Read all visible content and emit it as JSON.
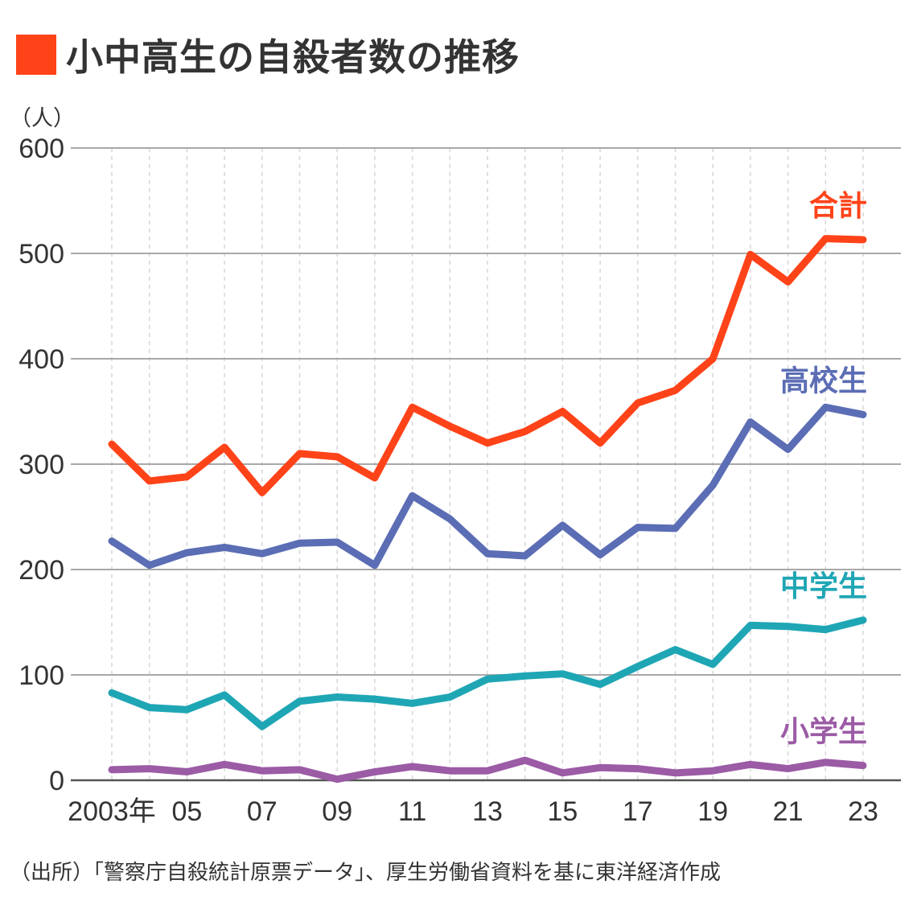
{
  "title": "小中高生の自殺者数の推移",
  "title_color": "#FF4319",
  "source": "（出所）「警察庁自殺統計原票データ」、厚生労働省資料を基に東洋経済作成",
  "chart_data": {
    "type": "line",
    "ylabel": "（人）",
    "ylim": [
      0,
      600
    ],
    "yticks": [
      0,
      100,
      200,
      300,
      400,
      500,
      600
    ],
    "grid": true,
    "x": [
      2003,
      2004,
      2005,
      2006,
      2007,
      2008,
      2009,
      2010,
      2011,
      2012,
      2013,
      2014,
      2015,
      2016,
      2017,
      2018,
      2019,
      2020,
      2021,
      2022,
      2023
    ],
    "xtick_labels": [
      {
        "x": 2003,
        "label": "2003年"
      },
      {
        "x": 2005,
        "label": "05"
      },
      {
        "x": 2007,
        "label": "07"
      },
      {
        "x": 2009,
        "label": "09"
      },
      {
        "x": 2011,
        "label": "11"
      },
      {
        "x": 2013,
        "label": "13"
      },
      {
        "x": 2015,
        "label": "15"
      },
      {
        "x": 2017,
        "label": "17"
      },
      {
        "x": 2019,
        "label": "19"
      },
      {
        "x": 2021,
        "label": "21"
      },
      {
        "x": 2023,
        "label": "23"
      }
    ],
    "series": [
      {
        "name": "合計",
        "color": "#FF4319",
        "values": [
          319,
          284,
          288,
          316,
          273,
          310,
          307,
          287,
          354,
          336,
          320,
          331,
          350,
          320,
          358,
          370,
          400,
          499,
          473,
          514,
          513
        ]
      },
      {
        "name": "高校生",
        "color": "#5B6DB4",
        "values": [
          227,
          204,
          216,
          221,
          215,
          225,
          226,
          204,
          270,
          248,
          215,
          213,
          242,
          214,
          240,
          239,
          280,
          340,
          314,
          354,
          347
        ]
      },
      {
        "name": "中学生",
        "color": "#1FA6B5",
        "values": [
          83,
          69,
          67,
          81,
          51,
          75,
          79,
          77,
          73,
          79,
          96,
          99,
          101,
          91,
          108,
          124,
          110,
          147,
          146,
          143,
          152
        ]
      },
      {
        "name": "小学生",
        "color": "#9B5BA5",
        "values": [
          10,
          11,
          8,
          15,
          9,
          10,
          1,
          8,
          13,
          9,
          9,
          19,
          7,
          12,
          11,
          7,
          9,
          15,
          11,
          17,
          14
        ]
      }
    ]
  }
}
